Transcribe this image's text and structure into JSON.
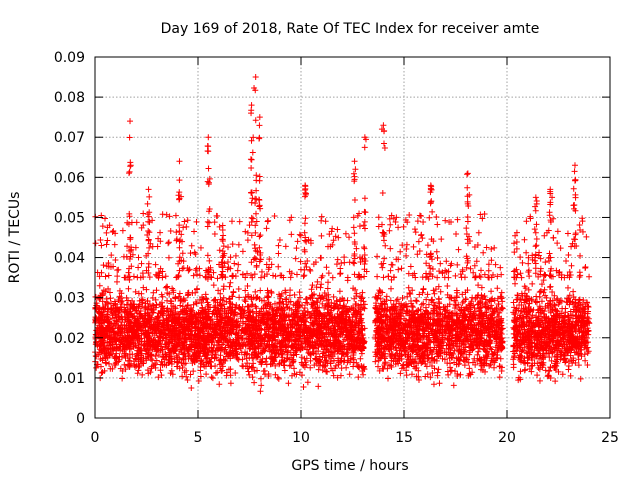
{
  "chart_data": {
    "type": "scatter",
    "title": "Day 169 of 2018, Rate Of TEC Index for receiver amte",
    "xlabel": "GPS time / hours",
    "ylabel": "ROTI / TECUs",
    "xlim": [
      0,
      25
    ],
    "ylim": [
      0,
      0.09
    ],
    "xticks": [
      0,
      5,
      10,
      15,
      20,
      25
    ],
    "yticks": [
      0,
      0.01,
      0.02,
      0.03,
      0.04,
      0.05,
      0.06,
      0.07,
      0.08,
      0.09
    ],
    "xtick_labels": [
      "0",
      "5",
      "10",
      "15",
      "20",
      "25"
    ],
    "ytick_labels": [
      "0",
      "0.01",
      "0.02",
      "0.03",
      "0.04",
      "0.05",
      "0.06",
      "0.07",
      "0.08",
      "0.09"
    ],
    "grid": true,
    "marker": "plus",
    "marker_color": "#ff0000",
    "series": [
      {
        "name": "ROTI",
        "segments": [
          {
            "x_start": 0.0,
            "x_end": 13.1
          },
          {
            "x_start": 13.6,
            "x_end": 19.8
          },
          {
            "x_start": 20.3,
            "x_end": 24.0
          }
        ],
        "typical_range": [
          0.008,
          0.035
        ],
        "peaks": [
          {
            "x": 1.7,
            "y": 0.074
          },
          {
            "x": 2.6,
            "y": 0.057
          },
          {
            "x": 4.1,
            "y": 0.064
          },
          {
            "x": 5.5,
            "y": 0.07
          },
          {
            "x": 6.2,
            "y": 0.048
          },
          {
            "x": 7.6,
            "y": 0.078
          },
          {
            "x": 7.8,
            "y": 0.085
          },
          {
            "x": 8.0,
            "y": 0.075
          },
          {
            "x": 10.2,
            "y": 0.058
          },
          {
            "x": 12.6,
            "y": 0.064
          },
          {
            "x": 13.1,
            "y": 0.07
          },
          {
            "x": 14.0,
            "y": 0.073
          },
          {
            "x": 16.3,
            "y": 0.058
          },
          {
            "x": 18.1,
            "y": 0.061
          },
          {
            "x": 21.4,
            "y": 0.055
          },
          {
            "x": 22.1,
            "y": 0.057
          },
          {
            "x": 23.3,
            "y": 0.063
          }
        ]
      }
    ]
  }
}
